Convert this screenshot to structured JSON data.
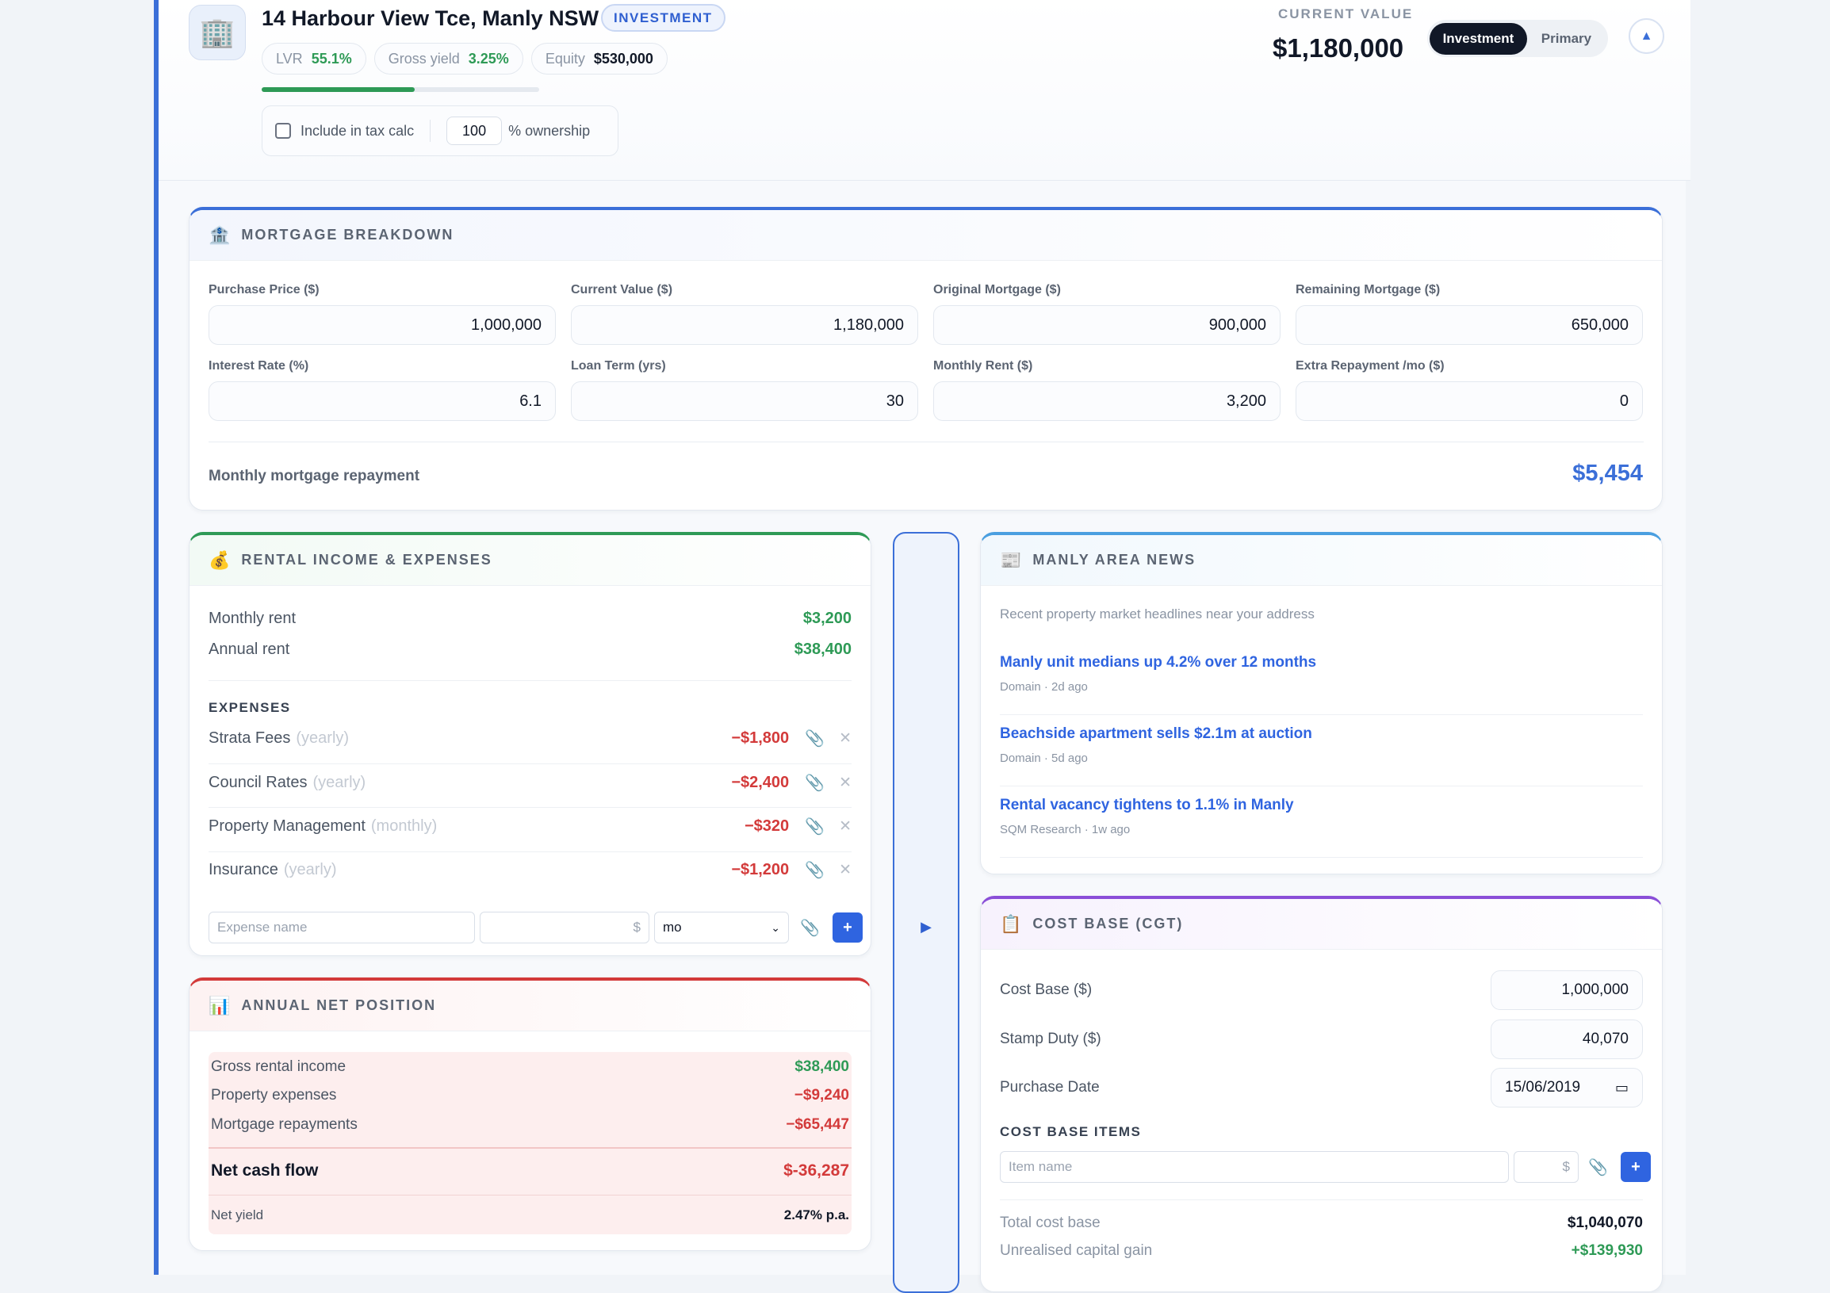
{
  "header": {
    "address": "14 Harbour View Tce, Manly NSW",
    "type_badge": "INVESTMENT",
    "lvr_label": "LVR",
    "lvr_value": "55.1%",
    "lvr_progress_pct": 55.1,
    "gross_yield_label": "Gross yield",
    "gross_yield_value": "3.25%",
    "equity_label": "Equity",
    "equity_value": "$530,000",
    "tax_calc_label": "Include in tax calc",
    "ownership_value": "100",
    "ownership_label": "% ownership",
    "current_value_label": "CURRENT VALUE",
    "current_value": "$1,180,000",
    "toggle": {
      "active": "Investment",
      "inactive": "Primary"
    },
    "colors": {
      "accent": "#3b6fd8",
      "positive": "#2e9a56",
      "negative": "#d33a3a"
    }
  },
  "mortgage": {
    "title": "MORTGAGE BREAKDOWN",
    "icon": "bank-icon",
    "fields": [
      {
        "label": "Purchase Price ($)",
        "value": "1,000,000"
      },
      {
        "label": "Current Value ($)",
        "value": "1,180,000"
      },
      {
        "label": "Original Mortgage ($)",
        "value": "900,000"
      },
      {
        "label": "Remaining Mortgage ($)",
        "value": "650,000"
      },
      {
        "label": "Interest Rate (%)",
        "value": "6.1"
      },
      {
        "label": "Loan Term (yrs)",
        "value": "30"
      },
      {
        "label": "Monthly Rent ($)",
        "value": "3,200"
      },
      {
        "label": "Extra Repayment /mo ($)",
        "value": "0"
      }
    ],
    "repayment_label": "Monthly mortgage repayment",
    "repayment_value": "$5,454"
  },
  "rental": {
    "title": "RENTAL INCOME & EXPENSES",
    "icon": "money-bag-icon",
    "monthly_label": "Monthly rent",
    "monthly_value": "$3,200",
    "annual_label": "Annual rent",
    "annual_value": "$38,400",
    "expenses_heading": "EXPENSES",
    "expenses": [
      {
        "name": "Strata Fees",
        "freq": "(yearly)",
        "amount": "−$1,800"
      },
      {
        "name": "Council Rates",
        "freq": "(yearly)",
        "amount": "−$2,400"
      },
      {
        "name": "Property Management",
        "freq": "(monthly)",
        "amount": "−$320"
      },
      {
        "name": "Insurance",
        "freq": "(yearly)",
        "amount": "−$1,200"
      }
    ],
    "new_expense_placeholder": "Expense name",
    "amount_suffix": "$",
    "freq_selected": "mo",
    "add_label": "+"
  },
  "net": {
    "title": "ANNUAL NET POSITION",
    "icon": "bar-chart-icon",
    "gross_label": "Gross rental income",
    "gross_value": "$38,400",
    "expenses_label": "Property expenses",
    "expenses_value": "−$9,240",
    "mortgage_label": "Mortgage repayments",
    "mortgage_value": "−$65,447",
    "cashflow_label": "Net cash flow",
    "cashflow_value": "$-36,287",
    "yield_label": "Net yield",
    "yield_value": "2.47% p.a."
  },
  "side_toggle": "▶",
  "news": {
    "title": "MANLY AREA NEWS",
    "icon": "newspaper-icon",
    "subtitle": "Recent property market headlines near your address",
    "items": [
      {
        "headline": "Manly unit medians up 4.2% over 12 months",
        "meta": "Domain · 2d ago"
      },
      {
        "headline": "Beachside apartment sells $2.1m at auction",
        "meta": "Domain · 5d ago"
      },
      {
        "headline": "Rental vacancy tightens to 1.1% in Manly",
        "meta": "SQM Research · 1w ago"
      }
    ]
  },
  "cgt": {
    "title": "COST BASE (CGT)",
    "icon": "clipboard-icon",
    "cost_base_label": "Cost Base ($)",
    "cost_base_value": "1,000,000",
    "stamp_label": "Stamp Duty ($)",
    "stamp_value": "40,070",
    "date_label": "Purchase Date",
    "date_value": "15/06/2019",
    "items_heading": "COST BASE ITEMS",
    "item_placeholder": "Item name",
    "amount_suffix": "$",
    "add_label": "+",
    "total_label": "Total cost base",
    "total_value": "$1,040,070",
    "gain_label": "Unrealised capital gain",
    "gain_value": "+$139,930"
  }
}
